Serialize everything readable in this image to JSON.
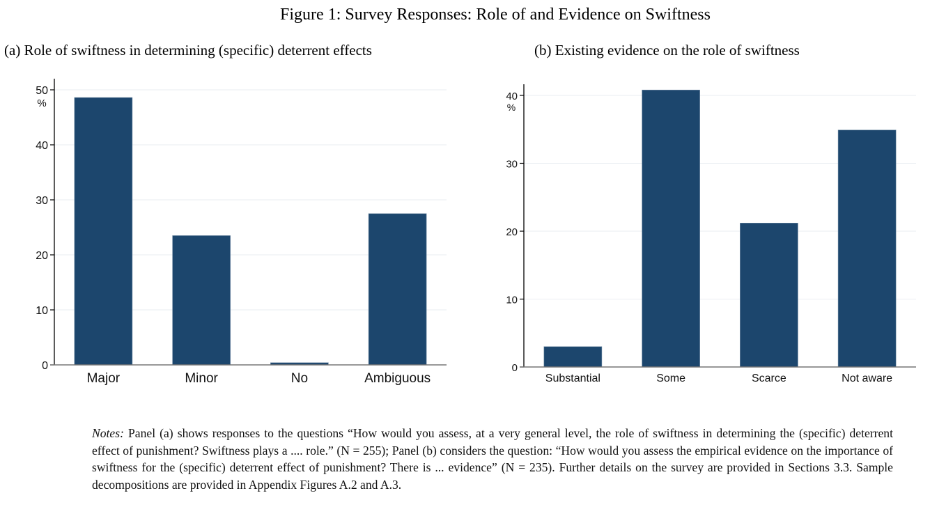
{
  "figure": {
    "title": "Figure 1: Survey Responses: Role of and Evidence on Swiftness",
    "notes_label": "Notes:",
    "notes_text": "Panel (a) shows responses to the questions “How would you assess, at a very general level, the role of swiftness in determining the (specific) deterrent effect of punishment? Swiftness plays a .... role.” (N = 255); Panel (b) considers the question: “How would you assess the empirical evidence on the importance of swiftness for the (specific) deterrent effect of punishment? There is ... evidence” (N = 235). Further details on the survey are provided in Sections 3.3. Sample decompositions are provided in Appendix Figures A.2 and A.3."
  },
  "colors": {
    "bar": "#1c466d",
    "grid": "#eaeef2",
    "axis": "#000000",
    "baseline": "#777777"
  },
  "chart_data": [
    {
      "type": "bar",
      "title": "(a) Role of swiftness in determining (specific) deterrent effects",
      "xlabel": "",
      "ylabel": "%",
      "categories": [
        "Major",
        "Minor",
        "No",
        "Ambiguous"
      ],
      "values": [
        48.6,
        23.5,
        0.4,
        27.5
      ],
      "ylim": [
        0,
        50
      ],
      "yticks": [
        0,
        10,
        20,
        30,
        40,
        50
      ],
      "grid": true
    },
    {
      "type": "bar",
      "title": "(b) Existing evidence on the role of swiftness",
      "xlabel": "",
      "ylabel": "%",
      "categories": [
        "Substantial",
        "Some",
        "Scarce",
        "Not aware"
      ],
      "values": [
        3.0,
        40.8,
        21.2,
        34.9
      ],
      "ylim": [
        0,
        40
      ],
      "yticks": [
        0,
        10,
        20,
        30,
        40
      ],
      "grid": true
    }
  ]
}
